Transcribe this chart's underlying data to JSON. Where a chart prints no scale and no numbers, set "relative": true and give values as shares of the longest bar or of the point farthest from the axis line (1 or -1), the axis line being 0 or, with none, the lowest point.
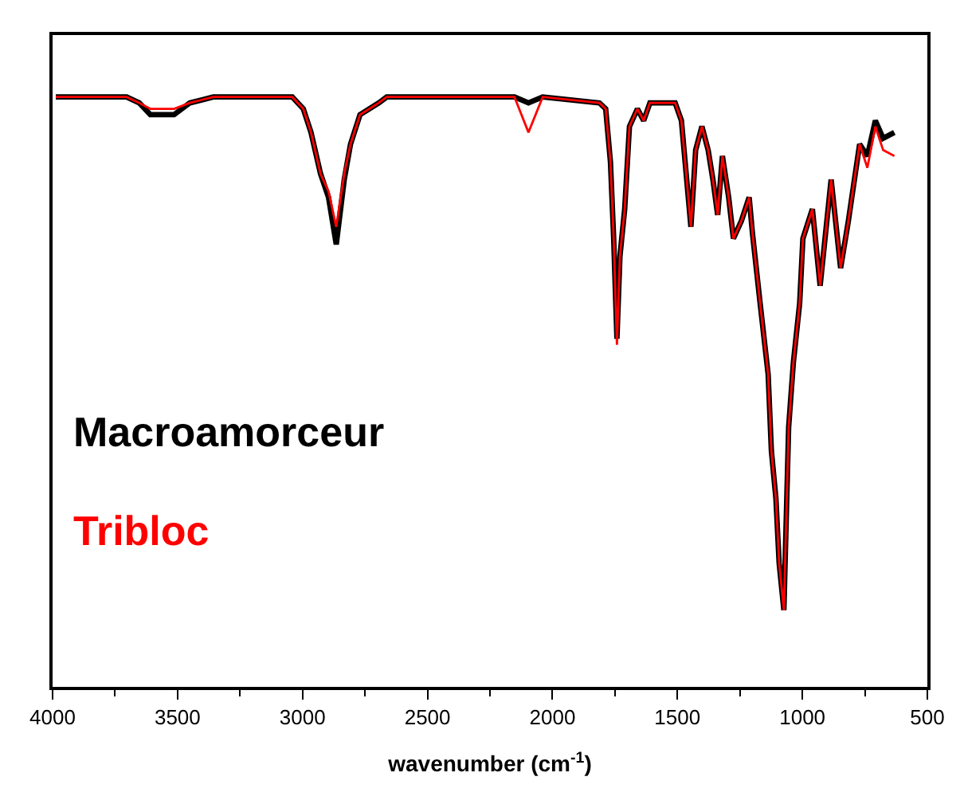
{
  "chart_data": {
    "type": "line",
    "relative": true,
    "xlabel": "wavenumber (cm$^{-1}$)",
    "x": [
      3987,
      3704,
      3653,
      3609,
      3514,
      3451,
      3357,
      3041,
      2997,
      2966,
      2928,
      2896,
      2865,
      2833,
      2808,
      2770,
      2695,
      2663,
      2316,
      2152,
      2096,
      2039,
      1812,
      1787,
      1768,
      1755,
      1742,
      1730,
      1711,
      1692,
      1660,
      1635,
      1610,
      1509,
      1484,
      1465,
      1446,
      1427,
      1402,
      1377,
      1358,
      1339,
      1320,
      1295,
      1276,
      1244,
      1213,
      1200,
      1169,
      1137,
      1124,
      1106,
      1093,
      1074,
      1055,
      1036,
      1011,
      998,
      960,
      929,
      885,
      847,
      816,
      771,
      740,
      708,
      677,
      632
    ],
    "series": [
      {
        "name": "Macroamorceur",
        "color": "#000000",
        "values": [
          1.0,
          1.0,
          0.99,
          0.97,
          0.97,
          0.99,
          1.0,
          1.0,
          0.98,
          0.94,
          0.87,
          0.83,
          0.75,
          0.86,
          0.92,
          0.97,
          0.99,
          1.0,
          1.0,
          1.0,
          0.99,
          1.0,
          0.99,
          0.98,
          0.89,
          0.76,
          0.59,
          0.73,
          0.81,
          0.95,
          0.98,
          0.96,
          0.99,
          0.99,
          0.96,
          0.87,
          0.78,
          0.91,
          0.95,
          0.91,
          0.86,
          0.8,
          0.9,
          0.83,
          0.76,
          0.79,
          0.83,
          0.77,
          0.65,
          0.53,
          0.4,
          0.32,
          0.21,
          0.13,
          0.44,
          0.55,
          0.65,
          0.76,
          0.81,
          0.68,
          0.86,
          0.71,
          0.79,
          0.92,
          0.9,
          0.96,
          0.93,
          0.94
        ]
      },
      {
        "name": "Tribloc",
        "color": "#ff0000",
        "values": [
          1.0,
          1.0,
          0.99,
          0.98,
          0.98,
          0.99,
          1.0,
          1.0,
          0.98,
          0.94,
          0.87,
          0.84,
          0.78,
          0.87,
          0.92,
          0.97,
          0.99,
          1.0,
          1.0,
          1.0,
          0.94,
          1.0,
          0.99,
          0.98,
          0.89,
          0.76,
          0.58,
          0.73,
          0.81,
          0.95,
          0.98,
          0.96,
          0.99,
          0.99,
          0.96,
          0.87,
          0.78,
          0.91,
          0.95,
          0.91,
          0.86,
          0.8,
          0.9,
          0.83,
          0.76,
          0.79,
          0.83,
          0.77,
          0.65,
          0.53,
          0.4,
          0.32,
          0.21,
          0.13,
          0.44,
          0.55,
          0.65,
          0.76,
          0.81,
          0.68,
          0.86,
          0.71,
          0.79,
          0.92,
          0.88,
          0.95,
          0.91,
          0.9
        ]
      }
    ],
    "xlim": [
      4000,
      500
    ],
    "xticks": [
      4000,
      3500,
      3000,
      2500,
      2000,
      1500,
      1000,
      500
    ]
  }
}
